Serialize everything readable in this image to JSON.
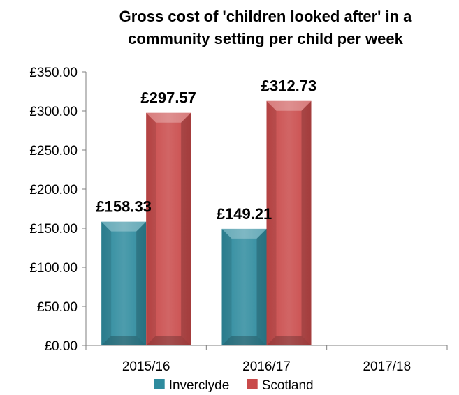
{
  "chart_data": {
    "type": "bar",
    "title_lines": [
      "Gross cost of 'children looked after' in a",
      "community setting per child per week"
    ],
    "categories": [
      "2015/16",
      "2016/17",
      "2017/18"
    ],
    "series": [
      {
        "name": "Inverclyde",
        "values": [
          158.33,
          149.21,
          null
        ],
        "labels": [
          "£158.33",
          "£149.21",
          ""
        ],
        "color": "#2E8B9E"
      },
      {
        "name": "Scotland",
        "values": [
          297.57,
          312.73,
          null
        ],
        "labels": [
          "£297.57",
          "£312.73",
          ""
        ],
        "color": "#C94A4A"
      }
    ],
    "ylim": [
      0,
      350
    ],
    "yticks": [
      0,
      50,
      100,
      150,
      200,
      250,
      300,
      350
    ],
    "ytick_labels": [
      "£0.00",
      "£50.00",
      "£100.00",
      "£150.00",
      "£200.00",
      "£250.00",
      "£300.00",
      "£350.00"
    ],
    "grid": false,
    "legend_position": "bottom"
  }
}
